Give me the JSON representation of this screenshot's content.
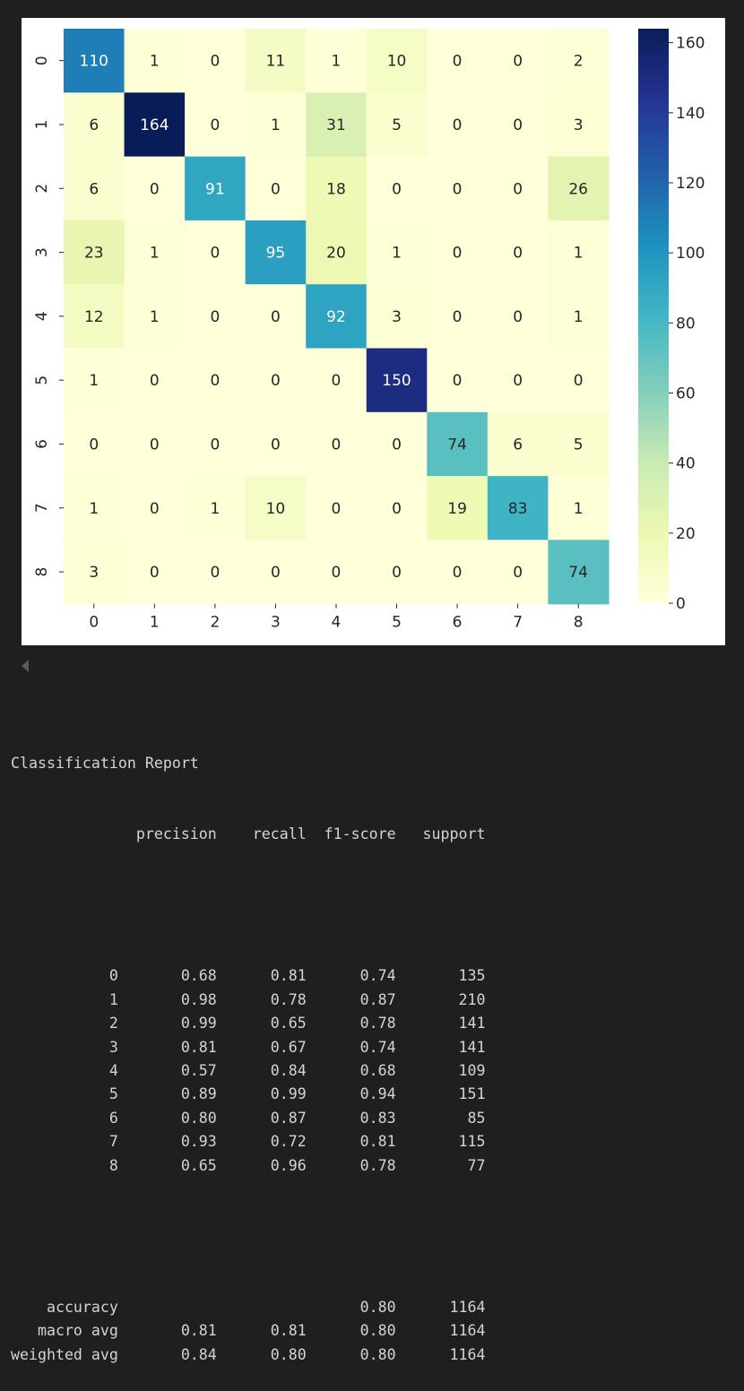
{
  "chart_data": {
    "type": "heatmap",
    "title": "",
    "xlabel": "",
    "ylabel": "",
    "x_categories": [
      "0",
      "1",
      "2",
      "3",
      "4",
      "5",
      "6",
      "7",
      "8"
    ],
    "y_categories": [
      "0",
      "1",
      "2",
      "3",
      "4",
      "5",
      "6",
      "7",
      "8"
    ],
    "matrix": [
      [
        110,
        1,
        0,
        11,
        1,
        10,
        0,
        0,
        2
      ],
      [
        6,
        164,
        0,
        1,
        31,
        5,
        0,
        0,
        3
      ],
      [
        6,
        0,
        91,
        0,
        18,
        0,
        0,
        0,
        26
      ],
      [
        23,
        1,
        0,
        95,
        20,
        1,
        0,
        0,
        1
      ],
      [
        12,
        1,
        0,
        0,
        92,
        3,
        0,
        0,
        1
      ],
      [
        1,
        0,
        0,
        0,
        0,
        150,
        0,
        0,
        0
      ],
      [
        0,
        0,
        0,
        0,
        0,
        0,
        74,
        6,
        5
      ],
      [
        1,
        0,
        1,
        10,
        0,
        0,
        19,
        83,
        1
      ],
      [
        3,
        0,
        0,
        0,
        0,
        0,
        0,
        0,
        74
      ]
    ],
    "colormap": "YlGnBu",
    "colorbar_range": [
      0,
      164
    ],
    "colorbar_ticks": [
      0,
      20,
      40,
      60,
      80,
      100,
      120,
      140,
      160
    ],
    "annotations": true
  },
  "report": {
    "title": "Classification Report",
    "header": "              precision    recall  f1-score   support",
    "class_rows": [
      "           0       0.68      0.81      0.74       135",
      "           1       0.98      0.78      0.87       210",
      "           2       0.99      0.65      0.78       141",
      "           3       0.81      0.67      0.74       141",
      "           4       0.57      0.84      0.68       109",
      "           5       0.89      0.99      0.94       151",
      "           6       0.80      0.87      0.83        85",
      "           7       0.93      0.72      0.81       115",
      "           8       0.65      0.96      0.78        77"
    ],
    "summary_rows": [
      "    accuracy                           0.80      1164",
      "   macro avg       0.81      0.81      0.80      1164",
      "weighted avg       0.84      0.80      0.80      1164"
    ]
  },
  "colors": {
    "page_bg": "#1f1f1f",
    "panel_bg": "#ffffff",
    "text": "#d4d4d4"
  }
}
